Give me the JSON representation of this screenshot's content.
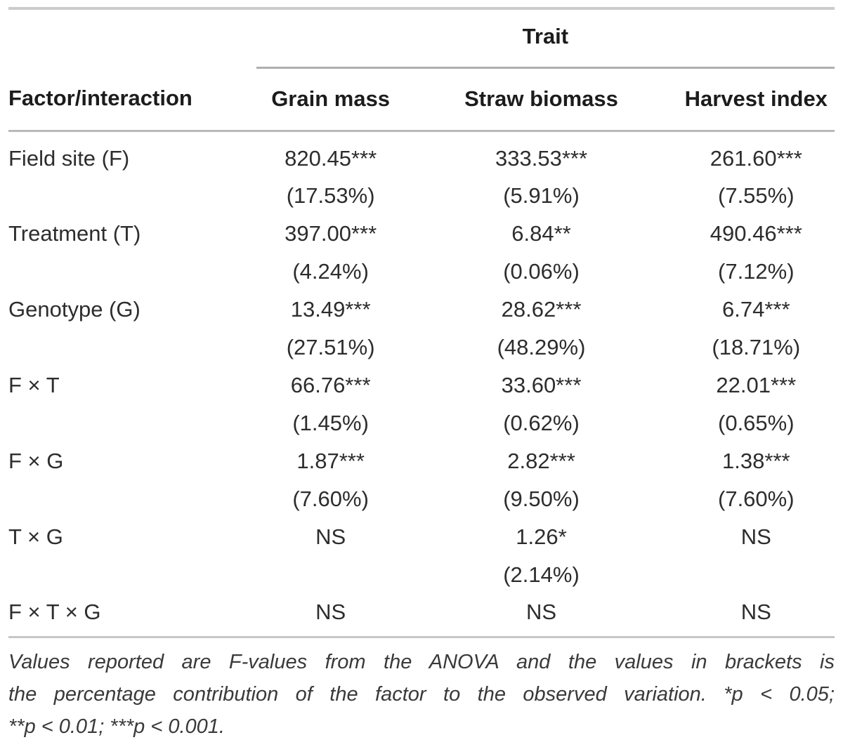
{
  "table": {
    "spanner": "Trait",
    "columns": [
      "Factor/interaction",
      "Grain mass",
      "Straw biomass",
      "Harvest index"
    ],
    "rows": [
      {
        "factor": "Field site (F)",
        "cells": [
          {
            "f": "820.45***",
            "pct": "(17.53%)"
          },
          {
            "f": "333.53***",
            "pct": "(5.91%)"
          },
          {
            "f": "261.60***",
            "pct": "(7.55%)"
          }
        ]
      },
      {
        "factor": "Treatment (T)",
        "cells": [
          {
            "f": "397.00***",
            "pct": "(4.24%)"
          },
          {
            "f": "6.84**",
            "pct": "(0.06%)"
          },
          {
            "f": "490.46***",
            "pct": "(7.12%)"
          }
        ]
      },
      {
        "factor": "Genotype (G)",
        "cells": [
          {
            "f": "13.49***",
            "pct": "(27.51%)"
          },
          {
            "f": "28.62***",
            "pct": "(48.29%)"
          },
          {
            "f": "6.74***",
            "pct": "(18.71%)"
          }
        ]
      },
      {
        "factor": "F × T",
        "cells": [
          {
            "f": "66.76***",
            "pct": "(1.45%)"
          },
          {
            "f": "33.60***",
            "pct": "(0.62%)"
          },
          {
            "f": "22.01***",
            "pct": "(0.65%)"
          }
        ]
      },
      {
        "factor": "F × G",
        "cells": [
          {
            "f": "1.87***",
            "pct": "(7.60%)"
          },
          {
            "f": "2.82***",
            "pct": "(9.50%)"
          },
          {
            "f": "1.38***",
            "pct": "(7.60%)"
          }
        ]
      },
      {
        "factor": "T × G",
        "cells": [
          {
            "f": "NS",
            "pct": ""
          },
          {
            "f": "1.26*",
            "pct": "(2.14%)"
          },
          {
            "f": "NS",
            "pct": ""
          }
        ]
      },
      {
        "factor": "F × T × G",
        "cells": [
          {
            "f": "NS",
            "pct": ""
          },
          {
            "f": "NS",
            "pct": ""
          },
          {
            "f": "NS",
            "pct": ""
          }
        ]
      }
    ]
  },
  "footnote": {
    "lines": [
      "Values reported are F-values from the ANOVA and the values in brackets is",
      "the percentage contribution of the factor to the observed variation. *p < 0.05;",
      "**p < 0.01; ***p < 0.001."
    ]
  },
  "colors": {
    "text": "#2d2d2d",
    "header_text": "#1c1c1c",
    "rule_top": "#cbcbcb",
    "rule_spanner": "#aeaeae",
    "rule_header": "#b9b9b9",
    "rule_bottom": "#c6c6c6"
  }
}
